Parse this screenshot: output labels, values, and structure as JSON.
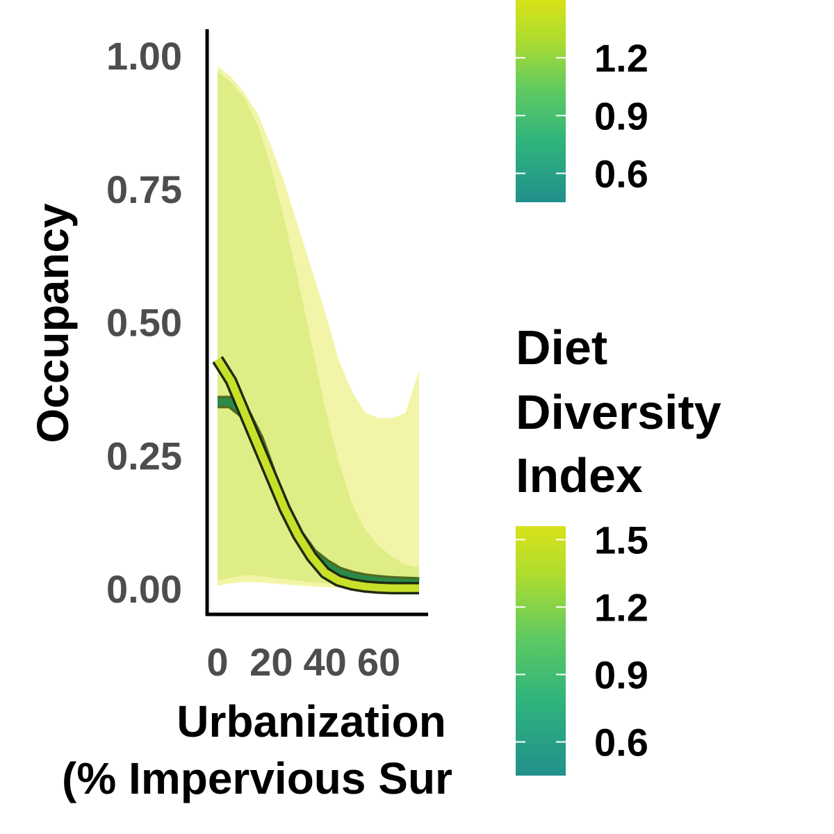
{
  "chart_data": {
    "type": "line",
    "xlabel_lines": [
      "Urbanization",
      "(% Impervious Sur"
    ],
    "ylabel": "Occupancy",
    "xlim": [
      0,
      75
    ],
    "ylim": [
      0,
      1
    ],
    "x_ticks": [
      "0",
      "20",
      "40",
      "60"
    ],
    "x_tick_values": [
      0,
      20,
      40,
      60
    ],
    "y_ticks": [
      "0.00",
      "0.25",
      "0.50",
      "0.75",
      "1.00"
    ],
    "y_tick_values": [
      0,
      0.25,
      0.5,
      0.75,
      1.0
    ],
    "x": [
      0,
      5,
      10,
      15,
      20,
      25,
      30,
      35,
      40,
      45,
      50,
      55,
      60,
      65,
      70,
      75
    ],
    "series": [
      {
        "color": "#2a8a4a",
        "line": [
          0.35,
          0.35,
          0.33,
          0.28,
          0.21,
          0.15,
          0.1,
          0.065,
          0.045,
          0.03,
          0.022,
          0.017,
          0.014,
          0.012,
          0.011,
          0.01
        ],
        "lower": [
          0.015,
          0.02,
          0.025,
          0.025,
          0.02,
          0.018,
          0.015,
          0.012,
          0.01,
          0.008,
          0.006,
          0.005,
          0.004,
          0.003,
          0.003,
          0.003
        ],
        "upper": [
          0.97,
          0.95,
          0.92,
          0.87,
          0.79,
          0.69,
          0.58,
          0.46,
          0.34,
          0.24,
          0.16,
          0.11,
          0.08,
          0.06,
          0.045,
          0.04
        ],
        "band_color": "#a6d96a"
      },
      {
        "color": "#c8e02a",
        "line": [
          0.43,
          0.39,
          0.33,
          0.27,
          0.21,
          0.15,
          0.1,
          0.06,
          0.03,
          0.015,
          0.008,
          0.004,
          0.002,
          0.001,
          0.001,
          0.001
        ],
        "lower": [
          0.005,
          0.01,
          0.012,
          0.012,
          0.01,
          0.008,
          0.006,
          0.004,
          0.003,
          0.002,
          0.001,
          0.001,
          0.0,
          0.0,
          0.0,
          0.0
        ],
        "upper": [
          0.98,
          0.96,
          0.93,
          0.89,
          0.83,
          0.76,
          0.68,
          0.6,
          0.52,
          0.43,
          0.37,
          0.33,
          0.32,
          0.32,
          0.33,
          0.41
        ],
        "band_color": "#eef28a"
      }
    ],
    "legends": [
      {
        "title_lines": [],
        "colorbar": [
          "#21908c",
          "#2fb47c",
          "#5ec962",
          "#addc30",
          "#d8e219"
        ],
        "tick_labels": [
          "1.2",
          "0.9",
          "0.6"
        ],
        "tick_values": [
          1.2,
          0.9,
          0.6
        ],
        "range": [
          0.45,
          1.5
        ]
      },
      {
        "title_lines": [
          "Diet",
          "Diversity",
          "Index"
        ],
        "colorbar": [
          "#21908c",
          "#2fb47c",
          "#5ec962",
          "#addc30",
          "#d8e219"
        ],
        "tick_labels": [
          "1.5",
          "1.2",
          "0.9",
          "0.6"
        ],
        "tick_values": [
          1.5,
          1.2,
          0.9,
          0.6
        ],
        "range": [
          0.45,
          1.56
        ]
      }
    ]
  }
}
